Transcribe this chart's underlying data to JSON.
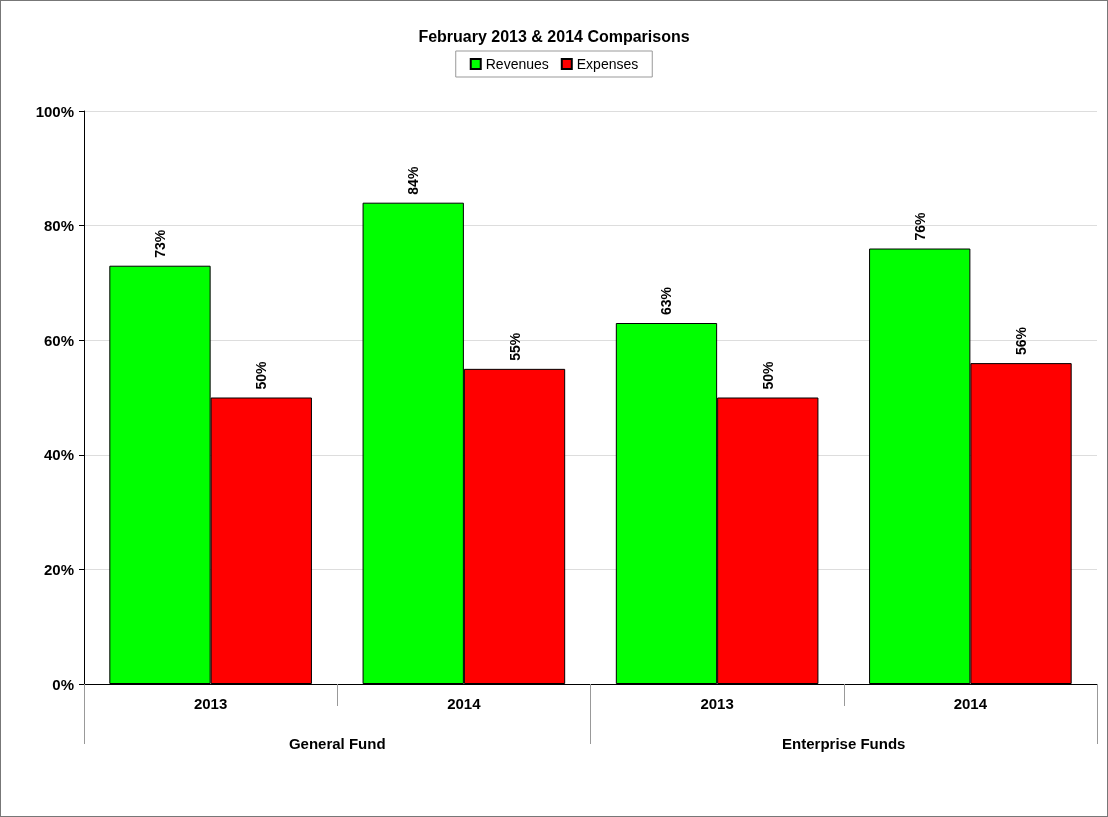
{
  "chart_data": {
    "type": "bar",
    "title": "February 2013 & 2014 Comparisons",
    "categories": [
      "2013",
      "2014",
      "2013",
      "2014"
    ],
    "series": [
      {
        "name": "Revenues",
        "color": "#00ff00",
        "values": [
          73,
          84,
          63,
          76
        ],
        "value_labels": [
          "73%",
          "84%",
          "63%",
          "76%"
        ]
      },
      {
        "name": "Expenses",
        "color": "#ff0000",
        "values": [
          50,
          55,
          50,
          56
        ],
        "value_labels": [
          "50%",
          "55%",
          "50%",
          "56%"
        ]
      }
    ],
    "annotations": [
      "General Fund",
      "Enterprise Funds"
    ],
    "ylim": [
      0,
      100
    ],
    "yticks": [
      {
        "value": 0,
        "label": "0%"
      },
      {
        "value": 20,
        "label": "20%"
      },
      {
        "value": 40,
        "label": "40%"
      },
      {
        "value": 60,
        "label": "60%"
      },
      {
        "value": 80,
        "label": "80%"
      },
      {
        "value": 100,
        "label": "100%"
      }
    ],
    "grid": "y",
    "legend": "top"
  }
}
